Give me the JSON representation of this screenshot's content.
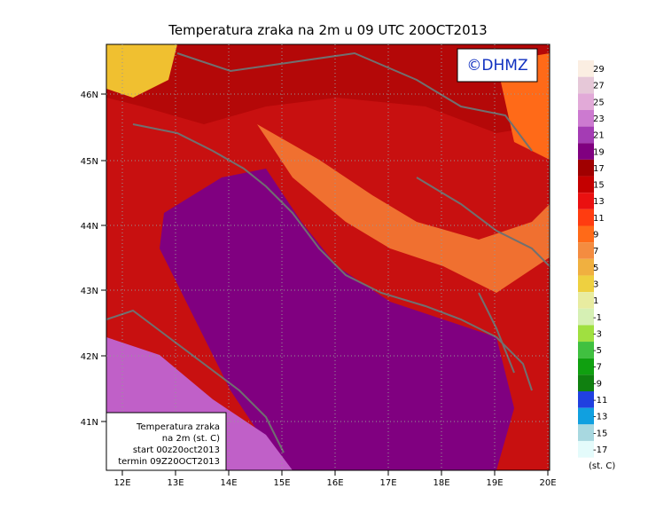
{
  "title": "Temperatura zraka na 2m u 09 UTC 20OCT2013",
  "logo": "©DHMZ",
  "lat_labels": [
    "46N",
    "45N",
    "44N",
    "43N",
    "42N",
    "41N"
  ],
  "lon_labels": [
    "12E",
    "13E",
    "14E",
    "15E",
    "16E",
    "17E",
    "18E",
    "19E",
    "20E"
  ],
  "info_box": [
    "Temperatura zraka",
    "na 2m (st. C)",
    "start 00z20oct2013",
    "termin 09Z20OCT2013"
  ],
  "legend": {
    "labels": [
      "29",
      "27",
      "25",
      "23",
      "21",
      "19",
      "17",
      "15",
      "13",
      "11",
      "9",
      "7",
      "5",
      "3",
      "1",
      "-1",
      "-3",
      "-5",
      "-7",
      "-9",
      "-11",
      "-13",
      "-15",
      "-17"
    ],
    "colors": [
      "#fbeee2",
      "#e6c8d8",
      "#e2aad8",
      "#cc7ad0",
      "#a43cb4",
      "#800080",
      "#a00000",
      "#c40000",
      "#ea1010",
      "#ff3c10",
      "#ff6a18",
      "#f48c40",
      "#f0b040",
      "#eed040",
      "#e8eca0",
      "#d6f0b4",
      "#a0e040",
      "#40c040",
      "#10a010",
      "#108010",
      "#2040e0",
      "#10a0e0",
      "#a8d8e0",
      "#e4fbfb"
    ],
    "unit": "(st. C)"
  }
}
